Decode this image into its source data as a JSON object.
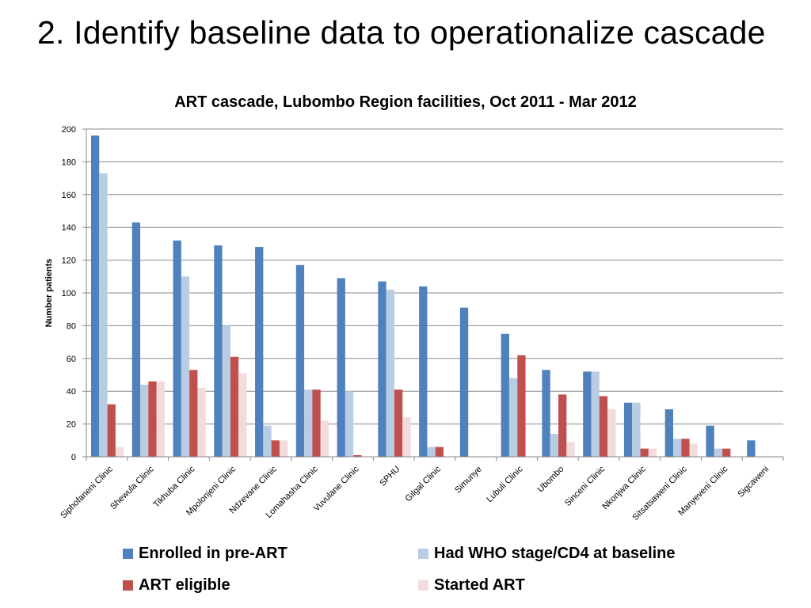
{
  "slide": {
    "title": "2.  Identify baseline data to operationalize cascade"
  },
  "colors": {
    "enrolled": "#4F81BD",
    "who": "#B8CCE4",
    "eligible": "#C0504D",
    "started": "#F2DCDB"
  },
  "chart_data": {
    "type": "bar",
    "title": "ART cascade, Lubombo Region facilities, Oct 2011 - Mar 2012",
    "xlabel": "",
    "ylabel": "Number patients",
    "ylim": [
      0,
      200
    ],
    "yticks": [
      0,
      20,
      40,
      60,
      80,
      100,
      120,
      140,
      160,
      180,
      200
    ],
    "grid": true,
    "legend": "bottom",
    "categories": [
      "Siphofaneni Clinic",
      "Shewula Clinic",
      "Tikhuba Clinic",
      "Mpolonjeni Clinic",
      "Ndzevane Clinic",
      "Lomahasha Clinic",
      "Vuvulane Clinic",
      "SPHU",
      "Gilgal Clinic",
      "Simunye",
      "Lubuli Clinic",
      "Ubombo",
      "Sinceni Clinic",
      "Nkonjwa Clinic",
      "Sitsatsaweni Clinic",
      "Manyeveni Clinic",
      "Sigcaweni"
    ],
    "series": [
      {
        "name": "Enrolled in pre-ART",
        "color": "#4F81BD",
        "values": [
          196,
          143,
          132,
          129,
          128,
          117,
          109,
          107,
          104,
          91,
          75,
          53,
          52,
          33,
          29,
          19,
          10
        ]
      },
      {
        "name": "Had WHO stage/CD4 at baseline",
        "color": "#B8CCE4",
        "values": [
          173,
          44,
          110,
          80,
          19,
          41,
          40,
          102,
          6,
          0,
          48,
          14,
          52,
          33,
          11,
          5,
          0
        ]
      },
      {
        "name": "ART eligible",
        "color": "#C0504D",
        "values": [
          32,
          46,
          53,
          61,
          10,
          41,
          1,
          41,
          6,
          0,
          62,
          38,
          37,
          5,
          11,
          5,
          0
        ]
      },
      {
        "name": "Started ART",
        "color": "#F2DCDB",
        "values": [
          6,
          46,
          42,
          51,
          10,
          22,
          0,
          24,
          0,
          0,
          0,
          9,
          29,
          5,
          8,
          0,
          0
        ]
      }
    ]
  }
}
